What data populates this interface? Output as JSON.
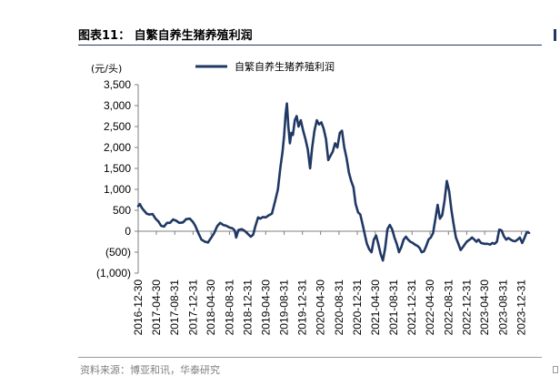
{
  "figure_title": "图表11： 自繁自养生猪养殖利润",
  "source": "资料来源：博亚和讯，华泰研究",
  "colors": {
    "series": "#1f3864",
    "axis": "#7f7f7f"
  },
  "chart_data": {
    "type": "line",
    "title": "",
    "ylabel": "(元/头)",
    "xlabel": "",
    "ylim": [
      -1000,
      3500
    ],
    "yticks": [
      3500,
      3000,
      2500,
      2000,
      1500,
      1000,
      500,
      0,
      -500,
      -1000
    ],
    "ytick_labels": [
      "3,500",
      "3,000",
      "2,500",
      "2,000",
      "1,500",
      "1,000",
      "500",
      "0",
      "(500)",
      "(1,000)"
    ],
    "xticks": [
      "2016-12-30",
      "2017-04-30",
      "2017-08-31",
      "2017-12-31",
      "2018-04-30",
      "2018-08-31",
      "2018-12-31",
      "2019-04-30",
      "2019-08-31",
      "2019-12-31",
      "2020-04-30",
      "2020-08-31",
      "2020-12-31",
      "2021-04-30",
      "2021-08-31",
      "2021-12-31",
      "2022-04-30",
      "2022-08-31",
      "2022-12-31",
      "2023-04-30",
      "2023-08-31",
      "2023-12-31"
    ],
    "legend_position": "top-center",
    "grid": false,
    "series": [
      {
        "name": "自繁自养生猪养殖利润",
        "points": [
          [
            "2016-12-30",
            600
          ],
          [
            "2017-01-10",
            650
          ],
          [
            "2017-01-25",
            550
          ],
          [
            "2017-02-10",
            480
          ],
          [
            "2017-02-25",
            420
          ],
          [
            "2017-03-15",
            400
          ],
          [
            "2017-04-05",
            410
          ],
          [
            "2017-04-25",
            300
          ],
          [
            "2017-05-15",
            230
          ],
          [
            "2017-06-01",
            130
          ],
          [
            "2017-06-20",
            110
          ],
          [
            "2017-07-10",
            200
          ],
          [
            "2017-07-30",
            200
          ],
          [
            "2017-08-20",
            280
          ],
          [
            "2017-09-10",
            250
          ],
          [
            "2017-09-30",
            200
          ],
          [
            "2017-10-25",
            210
          ],
          [
            "2017-11-15",
            290
          ],
          [
            "2017-12-10",
            300
          ],
          [
            "2017-12-31",
            220
          ],
          [
            "2018-01-15",
            130
          ],
          [
            "2018-02-05",
            -50
          ],
          [
            "2018-02-25",
            -200
          ],
          [
            "2018-03-20",
            -250
          ],
          [
            "2018-04-10",
            -270
          ],
          [
            "2018-04-30",
            -160
          ],
          [
            "2018-05-20",
            -50
          ],
          [
            "2018-06-10",
            120
          ],
          [
            "2018-06-30",
            200
          ],
          [
            "2018-07-20",
            150
          ],
          [
            "2018-08-10",
            130
          ],
          [
            "2018-08-31",
            90
          ],
          [
            "2018-09-20",
            70
          ],
          [
            "2018-10-05",
            20
          ],
          [
            "2018-10-15",
            -150
          ],
          [
            "2018-10-30",
            30
          ],
          [
            "2018-11-20",
            50
          ],
          [
            "2018-12-10",
            10
          ],
          [
            "2018-12-31",
            -60
          ],
          [
            "2019-01-20",
            -130
          ],
          [
            "2019-02-05",
            -80
          ],
          [
            "2019-02-20",
            120
          ],
          [
            "2019-03-10",
            330
          ],
          [
            "2019-03-25",
            300
          ],
          [
            "2019-04-10",
            340
          ],
          [
            "2019-04-30",
            330
          ],
          [
            "2019-05-20",
            380
          ],
          [
            "2019-06-10",
            420
          ],
          [
            "2019-06-30",
            700
          ],
          [
            "2019-07-20",
            1000
          ],
          [
            "2019-08-05",
            1500
          ],
          [
            "2019-08-20",
            1900
          ],
          [
            "2019-08-31",
            2300
          ],
          [
            "2019-09-10",
            2800
          ],
          [
            "2019-09-18",
            3050
          ],
          [
            "2019-09-28",
            2500
          ],
          [
            "2019-10-08",
            2100
          ],
          [
            "2019-10-18",
            2350
          ],
          [
            "2019-10-28",
            2300
          ],
          [
            "2019-11-10",
            2650
          ],
          [
            "2019-11-22",
            2750
          ],
          [
            "2019-12-05",
            2500
          ],
          [
            "2019-12-20",
            2650
          ],
          [
            "2020-01-05",
            2400
          ],
          [
            "2020-01-20",
            2200
          ],
          [
            "2020-02-05",
            1950
          ],
          [
            "2020-02-20",
            1500
          ],
          [
            "2020-03-05",
            2000
          ],
          [
            "2020-03-20",
            2400
          ],
          [
            "2020-04-05",
            2650
          ],
          [
            "2020-04-20",
            2550
          ],
          [
            "2020-05-05",
            2600
          ],
          [
            "2020-05-20",
            2450
          ],
          [
            "2020-06-05",
            2200
          ],
          [
            "2020-06-20",
            1700
          ],
          [
            "2020-07-05",
            1800
          ],
          [
            "2020-07-20",
            1900
          ],
          [
            "2020-08-05",
            2100
          ],
          [
            "2020-08-20",
            2000
          ],
          [
            "2020-09-05",
            2350
          ],
          [
            "2020-09-20",
            2400
          ],
          [
            "2020-10-05",
            2000
          ],
          [
            "2020-10-20",
            1750
          ],
          [
            "2020-11-05",
            1400
          ],
          [
            "2020-11-20",
            1200
          ],
          [
            "2020-12-05",
            1050
          ],
          [
            "2020-12-20",
            650
          ],
          [
            "2021-01-05",
            450
          ],
          [
            "2021-01-20",
            400
          ],
          [
            "2021-02-05",
            150
          ],
          [
            "2021-02-20",
            -100
          ],
          [
            "2021-03-05",
            -300
          ],
          [
            "2021-03-20",
            -430
          ],
          [
            "2021-04-05",
            -500
          ],
          [
            "2021-04-20",
            -200
          ],
          [
            "2021-05-05",
            -100
          ],
          [
            "2021-05-20",
            -300
          ],
          [
            "2021-06-05",
            -550
          ],
          [
            "2021-06-20",
            -700
          ],
          [
            "2021-07-05",
            -400
          ],
          [
            "2021-07-20",
            50
          ],
          [
            "2021-08-05",
            150
          ],
          [
            "2021-08-20",
            50
          ],
          [
            "2021-09-05",
            -150
          ],
          [
            "2021-09-20",
            -300
          ],
          [
            "2021-10-05",
            -500
          ],
          [
            "2021-10-20",
            -380
          ],
          [
            "2021-11-05",
            -200
          ],
          [
            "2021-11-20",
            -130
          ],
          [
            "2021-12-05",
            -200
          ],
          [
            "2021-12-20",
            -250
          ],
          [
            "2022-01-05",
            -280
          ],
          [
            "2022-01-20",
            -320
          ],
          [
            "2022-02-05",
            -350
          ],
          [
            "2022-02-20",
            -400
          ],
          [
            "2022-03-05",
            -500
          ],
          [
            "2022-03-20",
            -480
          ],
          [
            "2022-04-05",
            -350
          ],
          [
            "2022-04-20",
            -200
          ],
          [
            "2022-05-05",
            -150
          ],
          [
            "2022-05-20",
            -50
          ],
          [
            "2022-06-05",
            300
          ],
          [
            "2022-06-20",
            630
          ],
          [
            "2022-07-05",
            300
          ],
          [
            "2022-07-20",
            380
          ],
          [
            "2022-08-05",
            730
          ],
          [
            "2022-08-20",
            1200
          ],
          [
            "2022-09-05",
            950
          ],
          [
            "2022-09-20",
            500
          ],
          [
            "2022-10-05",
            150
          ],
          [
            "2022-10-20",
            -150
          ],
          [
            "2022-11-05",
            -300
          ],
          [
            "2022-11-20",
            -450
          ],
          [
            "2022-12-05",
            -380
          ],
          [
            "2022-12-31",
            -250
          ],
          [
            "2023-01-20",
            -200
          ],
          [
            "2023-02-05",
            -150
          ],
          [
            "2023-02-20",
            -200
          ],
          [
            "2023-03-05",
            -250
          ],
          [
            "2023-03-20",
            -200
          ],
          [
            "2023-04-05",
            -280
          ],
          [
            "2023-04-30",
            -300
          ],
          [
            "2023-05-20",
            -300
          ],
          [
            "2023-06-05",
            -320
          ],
          [
            "2023-06-20",
            -280
          ],
          [
            "2023-07-05",
            -300
          ],
          [
            "2023-07-20",
            -250
          ],
          [
            "2023-08-05",
            40
          ],
          [
            "2023-08-20",
            20
          ],
          [
            "2023-09-05",
            -120
          ],
          [
            "2023-09-20",
            -200
          ],
          [
            "2023-10-05",
            -160
          ],
          [
            "2023-10-20",
            -200
          ],
          [
            "2023-11-05",
            -230
          ],
          [
            "2023-11-20",
            -240
          ],
          [
            "2023-12-05",
            -200
          ],
          [
            "2023-12-20",
            -150
          ],
          [
            "2024-01-05",
            -280
          ],
          [
            "2024-01-20",
            -160
          ],
          [
            "2024-02-05",
            -20
          ],
          [
            "2024-02-20",
            -40
          ]
        ]
      }
    ]
  }
}
